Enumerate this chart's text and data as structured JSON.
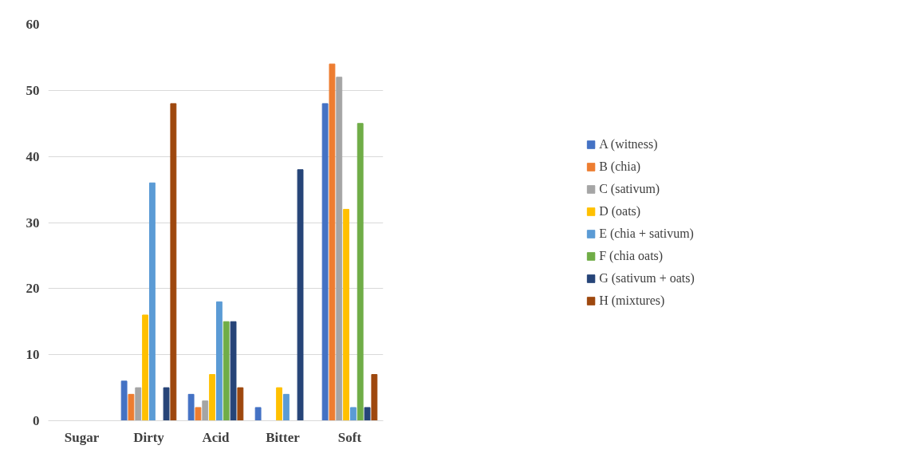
{
  "chart_data": {
    "type": "bar",
    "categories": [
      "Sugar",
      "Dirty",
      "Acid",
      "Bitter",
      "Soft"
    ],
    "series": [
      {
        "name": "A (witness)",
        "color": "#4472c4",
        "values": [
          0,
          6,
          4,
          2,
          48
        ]
      },
      {
        "name": "B (chia)",
        "color": "#ed7d31",
        "values": [
          0,
          4,
          2,
          0,
          54
        ]
      },
      {
        "name": "C (sativum)",
        "color": "#a5a5a5",
        "values": [
          0,
          5,
          3,
          0,
          52
        ]
      },
      {
        "name": "D (oats)",
        "color": "#ffc000",
        "values": [
          0,
          16,
          7,
          5,
          32
        ]
      },
      {
        "name": "E (chia + sativum)",
        "color": "#5b9bd5",
        "values": [
          0,
          36,
          18,
          4,
          2
        ]
      },
      {
        "name": "F (chia oats)",
        "color": "#70ad47",
        "values": [
          0,
          0,
          15,
          0,
          45
        ]
      },
      {
        "name": "G (sativum + oats)",
        "color": "#264478",
        "values": [
          0,
          5,
          15,
          38,
          2
        ]
      },
      {
        "name": "H (mixtures)",
        "color": "#9e480e",
        "values": [
          0,
          48,
          5,
          0,
          7
        ]
      }
    ],
    "ylim": [
      0,
      60
    ],
    "yticks": [
      0,
      10,
      20,
      30,
      40,
      50,
      60
    ],
    "grid": "y",
    "legend": "right"
  }
}
